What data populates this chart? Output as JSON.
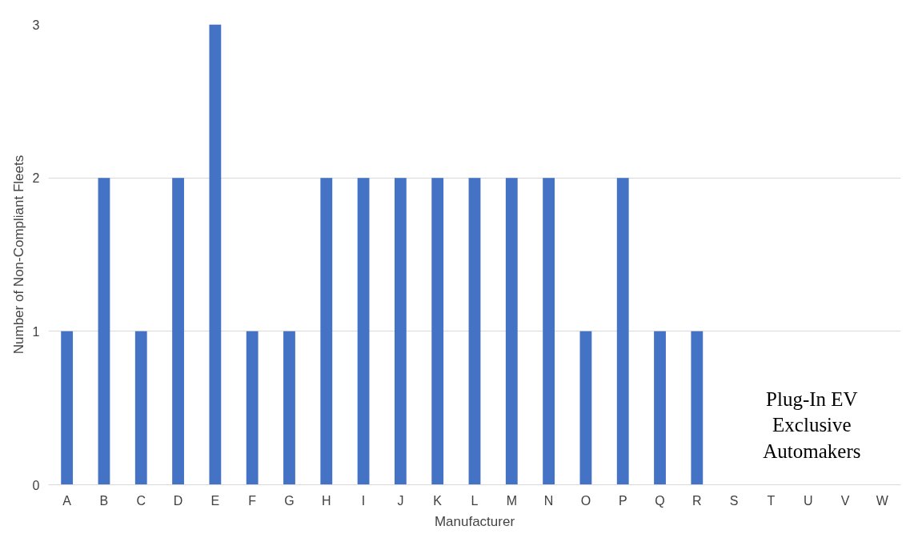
{
  "chart_data": {
    "type": "bar",
    "xlabel": "Manufacturer",
    "ylabel": "Number of Non-Compliant Fleets",
    "categories": [
      "A",
      "B",
      "C",
      "D",
      "E",
      "F",
      "G",
      "H",
      "I",
      "J",
      "K",
      "L",
      "M",
      "N",
      "O",
      "P",
      "Q",
      "R",
      "S",
      "T",
      "U",
      "V",
      "W"
    ],
    "values": [
      1,
      2,
      1,
      2,
      3,
      1,
      1,
      2,
      2,
      2,
      2,
      2,
      2,
      2,
      1,
      2,
      1,
      1,
      0,
      0,
      0,
      0,
      0
    ],
    "color": "#4472c4",
    "ylim": [
      0,
      3
    ],
    "yticks": [
      0,
      1,
      2,
      3
    ],
    "grid": "y",
    "annotations": [
      "Plug-In EV\nExclusive\nAutomakers"
    ]
  }
}
